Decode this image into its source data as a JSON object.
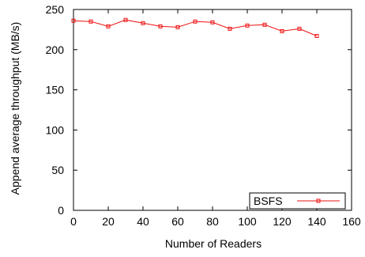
{
  "chart_data": {
    "type": "line",
    "title": "",
    "xlabel": "Number of Readers",
    "ylabel": "Append average throughput (MB/s)",
    "xlim": [
      0,
      160
    ],
    "ylim": [
      0,
      250
    ],
    "xticks": [
      "0",
      "20",
      "40",
      "60",
      "80",
      "100",
      "120",
      "140",
      "160"
    ],
    "yticks": [
      "0",
      "50",
      "100",
      "150",
      "200",
      "250"
    ],
    "grid": false,
    "legend_position": "bottom-right",
    "series": [
      {
        "name": "BSFS",
        "color": "#ee1111",
        "marker": "square",
        "x": [
          0,
          10,
          20,
          30,
          40,
          50,
          60,
          70,
          80,
          90,
          100,
          110,
          120,
          130,
          140
        ],
        "y": [
          236,
          235,
          229,
          237,
          233,
          229,
          228,
          235,
          234,
          226,
          230,
          231,
          223,
          226,
          217
        ]
      }
    ]
  }
}
